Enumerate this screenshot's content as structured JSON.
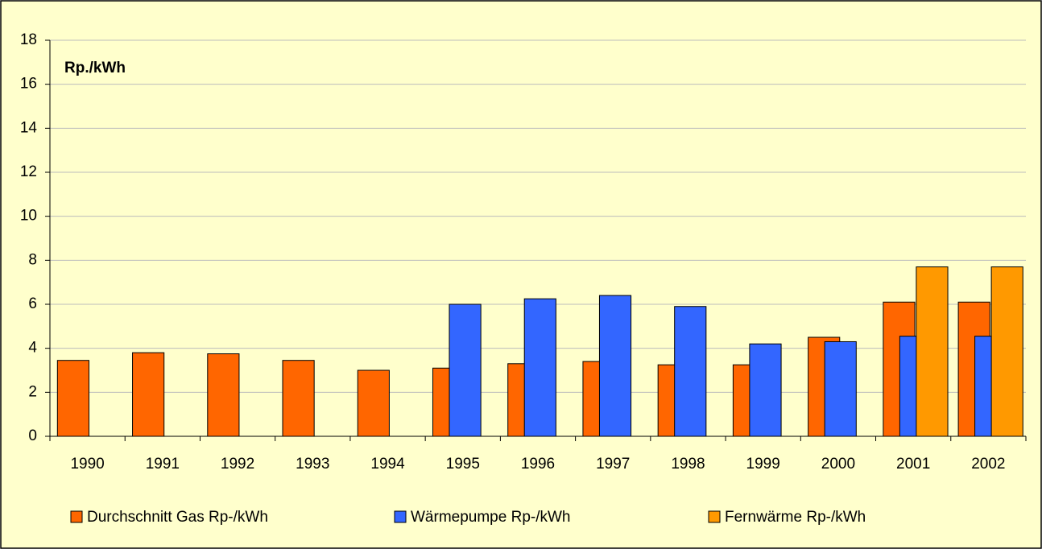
{
  "chart_data": {
    "type": "bar",
    "annotation": "Rp./kWh",
    "categories": [
      "1990",
      "1991",
      "1992",
      "1993",
      "1994",
      "1995",
      "1996",
      "1997",
      "1998",
      "1999",
      "2000",
      "2001",
      "2002"
    ],
    "series": [
      {
        "name": "Durchschnitt Gas Rp-/kWh",
        "color": "#ff6600",
        "values": [
          3.45,
          3.8,
          3.75,
          3.45,
          3.0,
          3.1,
          3.3,
          3.4,
          3.25,
          3.25,
          4.5,
          6.1,
          6.1
        ]
      },
      {
        "name": "Wärmepumpe Rp-/kWh",
        "color": "#3366ff",
        "values": [
          null,
          null,
          null,
          null,
          null,
          6.0,
          6.25,
          6.4,
          5.9,
          4.2,
          4.3,
          4.55,
          4.55
        ]
      },
      {
        "name": "Fernwärme Rp-/kWh",
        "color": "#ff9900",
        "values": [
          null,
          null,
          null,
          null,
          null,
          null,
          null,
          null,
          null,
          null,
          null,
          7.7,
          7.7
        ]
      }
    ],
    "ylim": [
      0,
      18
    ],
    "yticks": [
      0,
      2,
      4,
      6,
      8,
      10,
      12,
      14,
      16,
      18
    ],
    "grid": true,
    "legend": "bottom"
  }
}
